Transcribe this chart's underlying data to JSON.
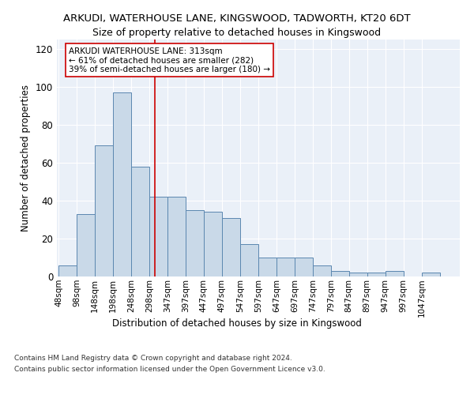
{
  "title1": "ARKUDI, WATERHOUSE LANE, KINGSWOOD, TADWORTH, KT20 6DT",
  "title2": "Size of property relative to detached houses in Kingswood",
  "xlabel": "Distribution of detached houses by size in Kingswood",
  "ylabel": "Number of detached properties",
  "bin_labels": [
    "48sqm",
    "98sqm",
    "148sqm",
    "198sqm",
    "248sqm",
    "298sqm",
    "347sqm",
    "397sqm",
    "447sqm",
    "497sqm",
    "547sqm",
    "597sqm",
    "647sqm",
    "697sqm",
    "747sqm",
    "797sqm",
    "847sqm",
    "897sqm",
    "947sqm",
    "997sqm",
    "1047sqm"
  ],
  "bin_edges": [
    48,
    98,
    148,
    198,
    248,
    298,
    347,
    397,
    447,
    497,
    547,
    597,
    647,
    697,
    747,
    797,
    847,
    897,
    947,
    997,
    1047,
    1097
  ],
  "values": [
    6,
    33,
    69,
    97,
    58,
    42,
    42,
    35,
    34,
    31,
    17,
    10,
    10,
    10,
    6,
    3,
    2,
    2,
    3,
    0,
    2
  ],
  "bar_facecolor": "#c9d9e8",
  "bar_edgecolor": "#5b87b0",
  "vline_x": 313,
  "vline_color": "#cc0000",
  "annotation_text": "ARKUDI WATERHOUSE LANE: 313sqm\n← 61% of detached houses are smaller (282)\n39% of semi-detached houses are larger (180) →",
  "annotation_box_edgecolor": "#cc0000",
  "annotation_box_facecolor": "#ffffff",
  "ylim": [
    0,
    125
  ],
  "yticks": [
    0,
    20,
    40,
    60,
    80,
    100,
    120
  ],
  "background_color": "#eaf0f8",
  "footer1": "Contains HM Land Registry data © Crown copyright and database right 2024.",
  "footer2": "Contains public sector information licensed under the Open Government Licence v3.0."
}
